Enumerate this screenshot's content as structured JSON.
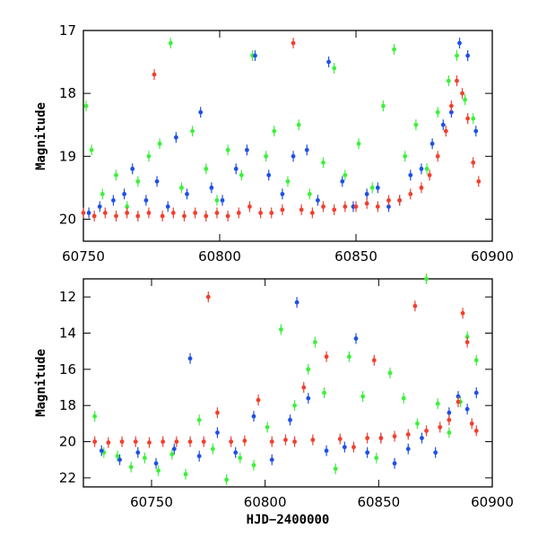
{
  "chart_data": [
    {
      "type": "scatter",
      "title": "",
      "xlabel": "",
      "ylabel": "Magnitude",
      "xlim": [
        60750,
        60900
      ],
      "ylim": [
        20.35,
        17.0
      ],
      "y_inverted": true,
      "x_ticks": [
        60750,
        60800,
        60850,
        60900
      ],
      "x_tick_labels": [
        "60750",
        "60800",
        "60850",
        "60900"
      ],
      "y_ticks": [
        17,
        18,
        19,
        20
      ],
      "y_tick_labels": [
        "17",
        "18",
        "19",
        "20"
      ],
      "grid": false,
      "legend": "none",
      "series": [
        {
          "color": "#3cf03c",
          "x": [
            60751,
            60753,
            60757,
            60762,
            60766,
            60770,
            60774,
            60778,
            60782,
            60786,
            60790,
            60795,
            60799,
            60803,
            60808,
            60812,
            60817,
            60820,
            60825,
            60829,
            60833,
            60838,
            60842,
            60846,
            60851,
            60856,
            60860,
            60864,
            60868,
            60872,
            60876,
            60880,
            60884,
            60887,
            60890,
            60893
          ],
          "y": [
            18.2,
            18.9,
            19.6,
            19.3,
            19.8,
            19.4,
            19.0,
            18.8,
            17.2,
            19.5,
            18.6,
            19.2,
            19.7,
            18.9,
            19.3,
            17.4,
            19.0,
            18.6,
            19.4,
            18.5,
            19.6,
            19.1,
            17.6,
            19.3,
            18.8,
            19.5,
            18.2,
            17.3,
            19.0,
            18.5,
            19.2,
            18.3,
            17.8,
            17.4,
            18.1,
            18.4
          ]
        },
        {
          "color": "#1f4fe6",
          "x": [
            60752,
            60756,
            60761,
            60765,
            60768,
            60773,
            60777,
            60781,
            60784,
            60788,
            60793,
            60797,
            60801,
            60806,
            60810,
            60813,
            60818,
            60823,
            60827,
            60832,
            60836,
            60840,
            60845,
            60849,
            60854,
            60858,
            60862,
            60866,
            60870,
            60874,
            60878,
            60882,
            60885,
            60888,
            60891,
            60894
          ],
          "y": [
            19.9,
            19.8,
            19.7,
            19.6,
            19.2,
            19.7,
            19.4,
            19.8,
            18.7,
            19.6,
            18.3,
            19.5,
            19.7,
            19.2,
            18.9,
            17.4,
            19.3,
            19.6,
            19.0,
            18.9,
            19.7,
            17.5,
            19.4,
            19.8,
            19.6,
            19.5,
            19.8,
            19.7,
            19.3,
            19.2,
            18.8,
            18.5,
            18.3,
            17.2,
            17.4,
            18.6
          ]
        },
        {
          "color": "#f0402e",
          "x": [
            60750,
            60754,
            60758,
            60762,
            60766,
            60770,
            60774,
            60776,
            60779,
            60783,
            60787,
            60791,
            60795,
            60799,
            60803,
            60807,
            60811,
            60815,
            60819,
            60823,
            60827,
            60830,
            60834,
            60838,
            60842,
            60846,
            60850,
            60854,
            60858,
            60862,
            60866,
            60870,
            60874,
            60877,
            60880,
            60883,
            60885,
            60887,
            60889,
            60891,
            60893,
            60895
          ],
          "y": [
            19.9,
            19.95,
            19.9,
            19.95,
            19.9,
            19.95,
            19.9,
            17.7,
            19.95,
            19.9,
            19.95,
            19.9,
            19.95,
            19.9,
            19.95,
            19.9,
            19.8,
            19.9,
            19.9,
            19.85,
            17.2,
            19.85,
            19.9,
            19.8,
            19.85,
            19.8,
            19.8,
            19.75,
            19.8,
            19.7,
            19.7,
            19.6,
            19.5,
            19.3,
            19.0,
            18.6,
            18.2,
            17.8,
            18.0,
            18.4,
            19.1,
            19.4
          ]
        }
      ]
    },
    {
      "type": "scatter",
      "title": "",
      "xlabel": "HJD−2400000",
      "ylabel": "Magnitude",
      "xlim": [
        60720,
        60900
      ],
      "ylim": [
        22.5,
        11.0
      ],
      "y_inverted": true,
      "x_ticks": [
        60750,
        60800,
        60850,
        60900
      ],
      "x_tick_labels": [
        "60750",
        "60800",
        "60850",
        "60900"
      ],
      "y_ticks": [
        12,
        14,
        16,
        18,
        20,
        22
      ],
      "y_tick_labels": [
        "12",
        "14",
        "16",
        "18",
        "20",
        "22"
      ],
      "grid": false,
      "legend": "none",
      "series": [
        {
          "color": "#3cf03c",
          "x": [
            60725,
            60729,
            60735,
            60741,
            60747,
            60753,
            60759,
            60765,
            60771,
            60777,
            60783,
            60789,
            60795,
            60801,
            60807,
            60813,
            60819,
            60822,
            60826,
            60831,
            60837,
            60843,
            60849,
            60855,
            60861,
            60867,
            60871,
            60876,
            60881,
            60886,
            60889,
            60893
          ],
          "y": [
            18.6,
            20.6,
            20.8,
            21.4,
            20.9,
            21.6,
            20.7,
            21.8,
            18.8,
            20.4,
            22.1,
            20.9,
            21.3,
            19.2,
            13.8,
            18.0,
            16.0,
            14.5,
            17.3,
            21.5,
            15.3,
            17.5,
            20.9,
            16.2,
            17.6,
            19.0,
            11.0,
            17.9,
            19.5,
            17.8,
            14.2,
            15.5
          ]
        },
        {
          "color": "#1f4fe6",
          "x": [
            60728,
            60736,
            60744,
            60752,
            60760,
            60767,
            60771,
            60779,
            60787,
            60795,
            60803,
            60811,
            60814,
            60819,
            60827,
            60835,
            60840,
            60845,
            60851,
            60857,
            60863,
            60869,
            60875,
            60881,
            60885,
            60889,
            60893
          ],
          "y": [
            20.5,
            21.0,
            20.6,
            21.2,
            20.4,
            15.4,
            20.8,
            19.5,
            20.6,
            18.6,
            21.0,
            18.8,
            12.3,
            17.6,
            20.5,
            20.3,
            14.3,
            20.6,
            19.8,
            21.2,
            20.4,
            19.8,
            20.6,
            18.4,
            17.5,
            18.2,
            17.3
          ]
        },
        {
          "color": "#f0402e",
          "x": [
            60725,
            60731,
            60737,
            60743,
            60749,
            60755,
            60761,
            60767,
            60773,
            60775,
            60779,
            60785,
            60791,
            60797,
            60803,
            60809,
            60813,
            60817,
            60821,
            60827,
            60833,
            60839,
            60845,
            60848,
            60851,
            60857,
            60863,
            60866,
            60871,
            60877,
            60881,
            60885,
            60887,
            60889,
            60891,
            60893
          ],
          "y": [
            20.0,
            20.05,
            20.0,
            20.0,
            20.05,
            20.0,
            20.0,
            20.0,
            20.0,
            12.0,
            18.4,
            20.0,
            19.95,
            17.7,
            20.0,
            19.9,
            20.0,
            17.0,
            19.9,
            15.3,
            19.85,
            20.3,
            19.8,
            15.5,
            19.8,
            19.7,
            19.6,
            12.5,
            19.4,
            19.2,
            18.8,
            17.8,
            12.9,
            14.5,
            19.0,
            19.4
          ]
        }
      ]
    }
  ]
}
